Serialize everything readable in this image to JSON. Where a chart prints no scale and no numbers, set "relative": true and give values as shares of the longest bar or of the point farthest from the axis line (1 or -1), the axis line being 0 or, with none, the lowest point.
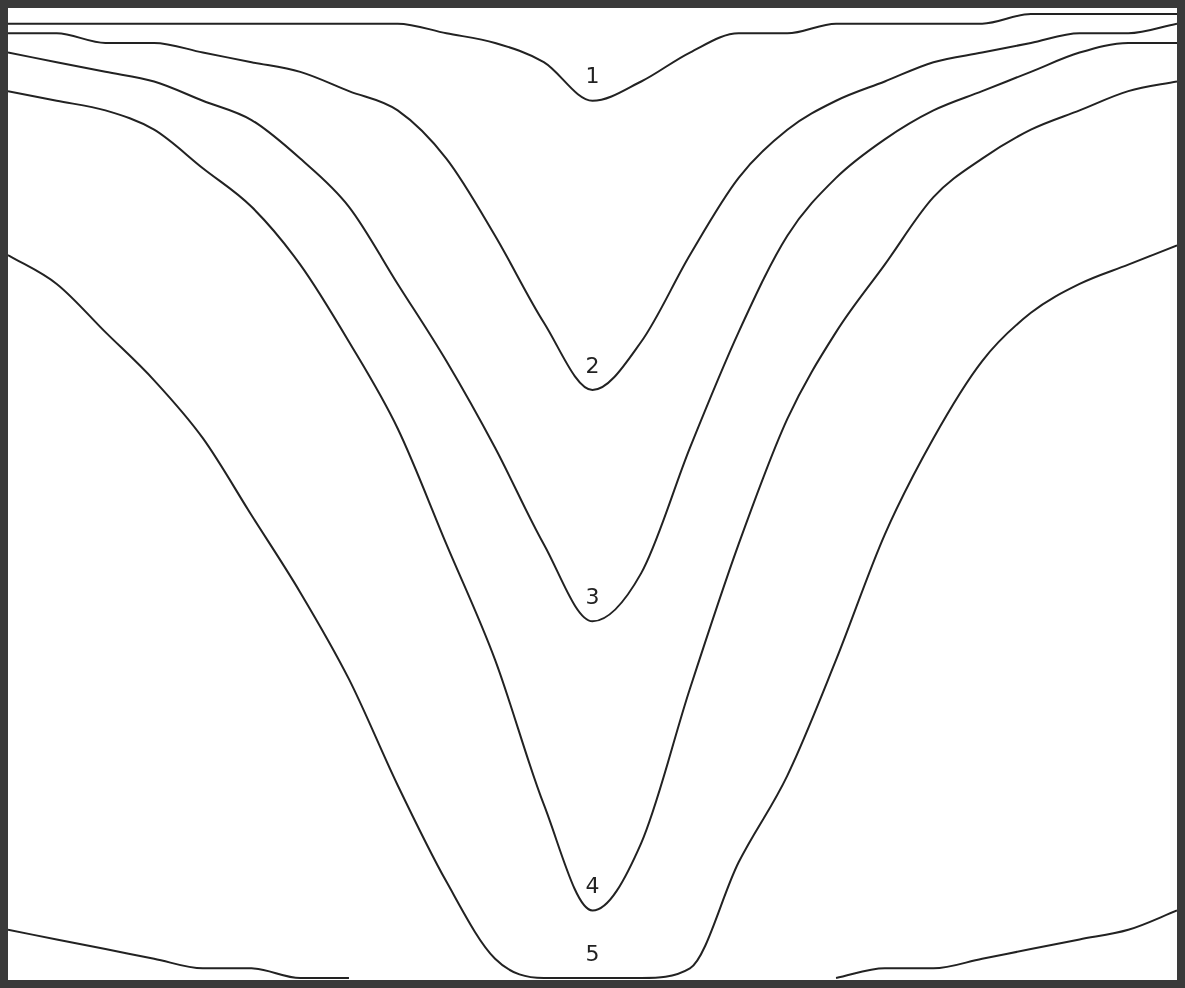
{
  "chart_data": {
    "type": "line",
    "relative": true,
    "legend": false,
    "marker": "none",
    "categories": [
      null,
      null,
      null,
      null,
      null,
      null,
      null,
      null,
      null,
      null,
      null,
      null,
      null,
      null,
      null,
      null,
      null,
      null,
      null,
      null,
      null,
      null,
      null,
      null,
      null
    ],
    "series": [
      {
        "name": "1",
        "color": "#222222",
        "values": [
          0.99,
          0.99,
          0.99,
          0.99,
          0.99,
          0.99,
          0.99,
          0.99,
          0.99,
          0.98,
          0.97,
          0.95,
          0.91,
          0.93,
          0.96,
          0.98,
          0.98,
          0.99,
          0.99,
          0.99,
          0.99,
          1,
          1,
          1,
          1
        ]
      },
      {
        "name": "2",
        "color": "#222222",
        "values": [
          0.98,
          0.98,
          0.97,
          0.97,
          0.96,
          0.95,
          0.94,
          0.92,
          0.9,
          0.85,
          0.77,
          0.68,
          0.61,
          0.66,
          0.75,
          0.83,
          0.88,
          0.91,
          0.93,
          0.95,
          0.96,
          0.97,
          0.98,
          0.98,
          0.99
        ]
      },
      {
        "name": "3",
        "color": "#222222",
        "values": [
          0.96,
          0.95,
          0.94,
          0.93,
          0.91,
          0.89,
          0.85,
          0.8,
          0.72,
          0.64,
          0.55,
          0.45,
          0.37,
          0.42,
          0.55,
          0.67,
          0.77,
          0.83,
          0.87,
          0.9,
          0.92,
          0.94,
          0.96,
          0.97,
          0.97
        ]
      },
      {
        "name": "4",
        "color": "#222222",
        "values": [
          0.92,
          0.91,
          0.9,
          0.88,
          0.84,
          0.8,
          0.74,
          0.66,
          0.57,
          0.45,
          0.33,
          0.18,
          0.07,
          0.14,
          0.3,
          0.45,
          0.58,
          0.67,
          0.74,
          0.81,
          0.85,
          0.88,
          0.9,
          0.92,
          0.93
        ]
      },
      {
        "name": "5",
        "color": "#222222",
        "values": [
          0.75,
          0.72,
          0.67,
          0.62,
          0.56,
          0.48,
          0.4,
          0.31,
          0.2,
          0.1,
          0.02,
          0,
          0,
          0,
          0.01,
          0.12,
          0.21,
          0.33,
          0.46,
          0.56,
          0.64,
          0.69,
          0.72,
          0.74,
          0.76
        ]
      },
      {
        "color": "#222222",
        "values": [
          0.05,
          0.04,
          0.03,
          0.02,
          0.01,
          0.01,
          0,
          0,
          null,
          null,
          null,
          null,
          null,
          null,
          null,
          null,
          null,
          0,
          0.01,
          0.01,
          0.02,
          0.03,
          0.04,
          0.05,
          0.07
        ]
      }
    ]
  }
}
